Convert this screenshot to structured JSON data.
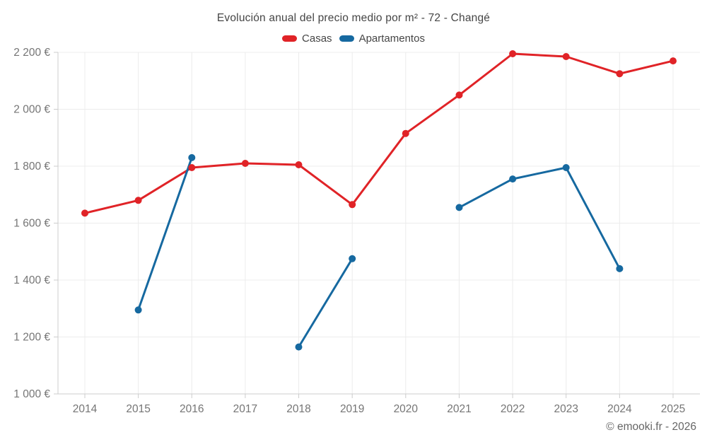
{
  "window": {
    "title": "Evolución anual del precio medio por m² - 72 - Changé"
  },
  "footer": {
    "copyright": "© emooki.fr - 2026"
  },
  "colors": {
    "casas": "#e02327",
    "apartamentos": "#1669a0",
    "grid": "#ececec",
    "axis": "#cccccc",
    "tick_text": "#757575",
    "title_text": "#454545"
  },
  "chart_data": {
    "type": "line",
    "title": "Evolución anual del precio medio por m² - 72 - Changé",
    "x": [
      "2014",
      "2015",
      "2016",
      "2017",
      "2018",
      "2019",
      "2020",
      "2021",
      "2022",
      "2023",
      "2024",
      "2025"
    ],
    "series": [
      {
        "name": "Casas",
        "color": "#e02327",
        "values": [
          1635,
          1680,
          1795,
          1810,
          1805,
          1665,
          1915,
          2050,
          2195,
          2185,
          2125,
          2170
        ]
      },
      {
        "name": "Apartamentos",
        "color": "#1669a0",
        "values": [
          null,
          1295,
          1830,
          null,
          1165,
          1475,
          null,
          1655,
          1755,
          1795,
          1440,
          null
        ]
      }
    ],
    "xlabel": "",
    "ylabel": "",
    "ylim": [
      1000,
      2200
    ],
    "yticks": [
      1000,
      1200,
      1400,
      1600,
      1800,
      2000,
      2200
    ],
    "ytick_labels": [
      "1 000 €",
      "1 200 €",
      "1 400 €",
      "1 600 €",
      "1 800 €",
      "2 000 €",
      "2 200 €"
    ],
    "grid": true,
    "legend_position": "top"
  }
}
